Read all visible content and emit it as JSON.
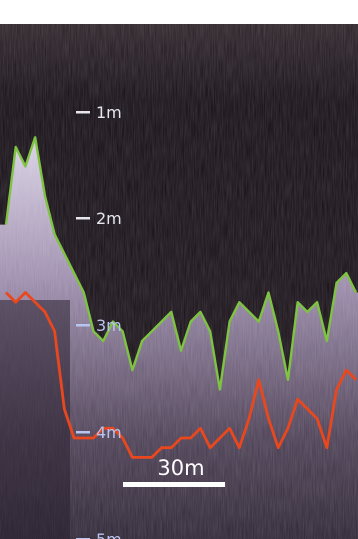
{
  "colors": {
    "water": "#0f0a10",
    "seabed": "#9a8aa8",
    "surface_line": "#7ec342",
    "bottom_line": "#e9481e",
    "label_white": "#e6e6ee",
    "label_blue": "#b8c4f0",
    "scale_bar": "#ffffff"
  },
  "depth_scale": {
    "unit": "m",
    "ticks": [
      {
        "label": "1m",
        "depth": 1
      },
      {
        "label": "2m",
        "depth": 2
      },
      {
        "label": "3m",
        "depth": 3
      },
      {
        "label": "4m",
        "depth": 4
      },
      {
        "label": "5m",
        "depth": 5
      }
    ]
  },
  "scale_bar": {
    "label": "30m",
    "length_m": 30
  },
  "traces": {
    "surface_line_depth_m": [
      1.8,
      1.0,
      1.2,
      0.9,
      1.5,
      1.9,
      2.1,
      2.3,
      2.5,
      2.9,
      3.0,
      2.8,
      2.9,
      3.3,
      3.0,
      2.9,
      2.8,
      2.7,
      3.1,
      2.8,
      2.7,
      2.9,
      3.5,
      2.8,
      2.6,
      2.7,
      2.8,
      2.5,
      2.9,
      3.4,
      2.6,
      2.7,
      2.6,
      3.0,
      2.4,
      2.3,
      2.5
    ],
    "bottom_line_depth_m": [
      2.5,
      2.6,
      2.5,
      2.6,
      2.7,
      2.9,
      3.7,
      4.0,
      4.0,
      4.0,
      3.9,
      3.9,
      4.0,
      4.2,
      4.2,
      4.2,
      4.1,
      4.1,
      4.0,
      4.0,
      3.9,
      4.1,
      4.0,
      3.9,
      4.1,
      3.8,
      3.4,
      3.8,
      4.1,
      3.9,
      3.6,
      3.7,
      3.8,
      4.1,
      3.5,
      3.3,
      3.4
    ]
  }
}
